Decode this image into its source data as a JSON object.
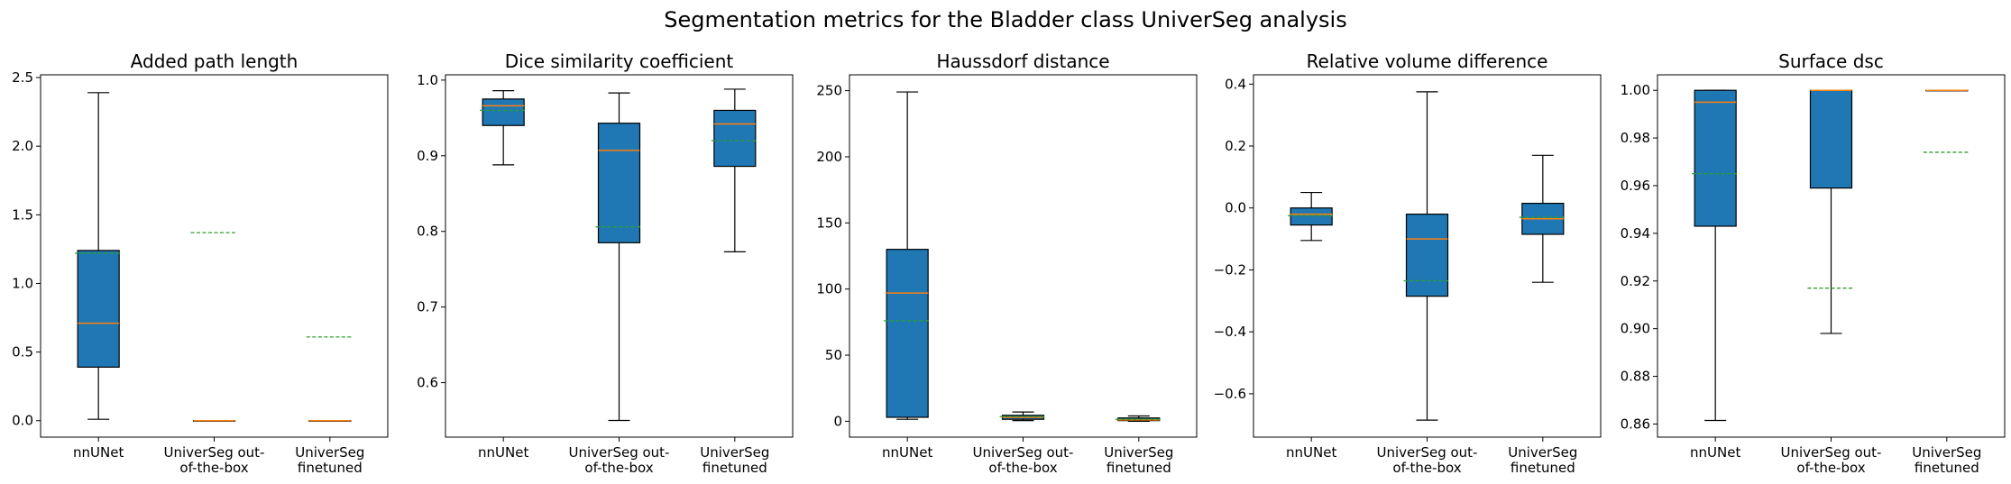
{
  "figure": {
    "suptitle": "Segmentation metrics for the Bladder class UniverSeg analysis"
  },
  "colors": {
    "box": "#1f77b4",
    "median": "#ff7f0e",
    "mean": "#2ca02c"
  },
  "chart_data": [
    {
      "type": "box",
      "title": "Added path length",
      "categories": [
        "nnUNet",
        "UniverSeg out-of-the-box",
        "UniverSeg finetuned"
      ],
      "category_lines": [
        [
          "nnUNet"
        ],
        [
          "UniverSeg out-",
          "of-the-box"
        ],
        [
          "UniverSeg",
          "finetuned"
        ]
      ],
      "ylim": [
        -0.12,
        2.52
      ],
      "yticks": [
        0.0,
        0.5,
        1.0,
        1.5,
        2.0,
        2.5
      ],
      "ytick_labels": [
        "0.0",
        "0.5",
        "1.0",
        "1.5",
        "2.0",
        "2.5"
      ],
      "boxes": [
        {
          "whislo": 0.01,
          "q1": 0.39,
          "med": 0.71,
          "q3": 1.24,
          "whishi": 2.39,
          "mean": 1.22
        },
        {
          "whislo": 0.0,
          "q1": 0.0,
          "med": 0.0,
          "q3": 0.0,
          "whishi": 0.0,
          "mean": 1.37
        },
        {
          "whislo": 0.0,
          "q1": 0.0,
          "med": 0.0,
          "q3": 0.0,
          "whishi": 0.0,
          "mean": 0.61
        }
      ]
    },
    {
      "type": "box",
      "title": "Dice similarity coefficient",
      "categories": [
        "nnUNet",
        "UniverSeg out-of-the-box",
        "UniverSeg finetuned"
      ],
      "category_lines": [
        [
          "nnUNet"
        ],
        [
          "UniverSeg out-",
          "of-the-box"
        ],
        [
          "UniverSeg",
          "finetuned"
        ]
      ],
      "ylim": [
        0.528,
        1.007
      ],
      "yticks": [
        0.6,
        0.7,
        0.8,
        0.9,
        1.0
      ],
      "ytick_labels": [
        "0.6",
        "0.7",
        "0.8",
        "0.9",
        "1.0"
      ],
      "boxes": [
        {
          "whislo": 0.888,
          "q1": 0.94,
          "med": 0.966,
          "q3": 0.975,
          "whishi": 0.986,
          "mean": 0.96
        },
        {
          "whislo": 0.55,
          "q1": 0.785,
          "med": 0.907,
          "q3": 0.943,
          "whishi": 0.983,
          "mean": 0.806
        },
        {
          "whislo": 0.773,
          "q1": 0.886,
          "med": 0.942,
          "q3": 0.96,
          "whishi": 0.988,
          "mean": 0.92
        }
      ]
    },
    {
      "type": "box",
      "title": "Haussdorf distance",
      "categories": [
        "nnUNet",
        "UniverSeg out-of-the-box",
        "UniverSeg finetuned"
      ],
      "category_lines": [
        [
          "nnUNet"
        ],
        [
          "UniverSeg out-",
          "of-the-box"
        ],
        [
          "UniverSeg",
          "finetuned"
        ]
      ],
      "ylim": [
        -12,
        262
      ],
      "yticks": [
        0,
        50,
        100,
        150,
        200,
        250
      ],
      "ytick_labels": [
        "0",
        "50",
        "100",
        "150",
        "200",
        "250"
      ],
      "boxes": [
        {
          "whislo": 1.5,
          "q1": 3,
          "med": 97,
          "q3": 130,
          "whishi": 249,
          "mean": 76
        },
        {
          "whislo": 0.5,
          "q1": 1.5,
          "med": 3,
          "q3": 4.5,
          "whishi": 7,
          "mean": 3.5
        },
        {
          "whislo": 0,
          "q1": 0.5,
          "med": 1,
          "q3": 2.5,
          "whishi": 4,
          "mean": 1.5
        }
      ]
    },
    {
      "type": "box",
      "title": "Relative volume difference",
      "categories": [
        "nnUNet",
        "UniverSeg out-of-the-box",
        "UniverSeg finetuned"
      ],
      "category_lines": [
        [
          "nnUNet"
        ],
        [
          "UniverSeg out-",
          "of-the-box"
        ],
        [
          "UniverSeg",
          "finetuned"
        ]
      ],
      "ylim": [
        -0.74,
        0.43
      ],
      "yticks": [
        -0.6,
        -0.4,
        -0.2,
        0.0,
        0.2,
        0.4
      ],
      "ytick_labels": [
        "−0.6",
        "−0.4",
        "−0.2",
        "0.0",
        "0.2",
        "0.4"
      ],
      "boxes": [
        {
          "whislo": -0.105,
          "q1": -0.055,
          "med": -0.02,
          "q3": 0.0,
          "whishi": 0.05,
          "mean": -0.025
        },
        {
          "whislo": -0.685,
          "q1": -0.285,
          "med": -0.1,
          "q3": -0.02,
          "whishi": 0.375,
          "mean": -0.235
        },
        {
          "whislo": -0.24,
          "q1": -0.085,
          "med": -0.035,
          "q3": 0.015,
          "whishi": 0.17,
          "mean": -0.03
        }
      ]
    },
    {
      "type": "box",
      "title": "Surface dsc",
      "categories": [
        "nnUNet",
        "UniverSeg out-of-the-box",
        "UniverSeg finetuned"
      ],
      "category_lines": [
        [
          "nnUNet"
        ],
        [
          "UniverSeg out-",
          "of-the-box"
        ],
        [
          "UniverSeg",
          "finetuned"
        ]
      ],
      "ylim": [
        0.8545,
        1.0065
      ],
      "yticks": [
        0.86,
        0.88,
        0.9,
        0.92,
        0.94,
        0.96,
        0.98,
        1.0
      ],
      "ytick_labels": [
        "0.86",
        "0.88",
        "0.90",
        "0.92",
        "0.94",
        "0.96",
        "0.98",
        "1.00"
      ],
      "boxes": [
        {
          "whislo": 0.8615,
          "q1": 0.943,
          "med": 0.995,
          "q3": 1.0,
          "whishi": 1.0,
          "mean": 0.965
        },
        {
          "whislo": 0.898,
          "q1": 0.959,
          "med": 1.0,
          "q3": 1.0,
          "whishi": 1.0,
          "mean": 0.917
        },
        {
          "whislo": 1.0,
          "q1": 1.0,
          "med": 1.0,
          "q3": 1.0,
          "whishi": 1.0,
          "mean": 0.974
        }
      ]
    }
  ]
}
